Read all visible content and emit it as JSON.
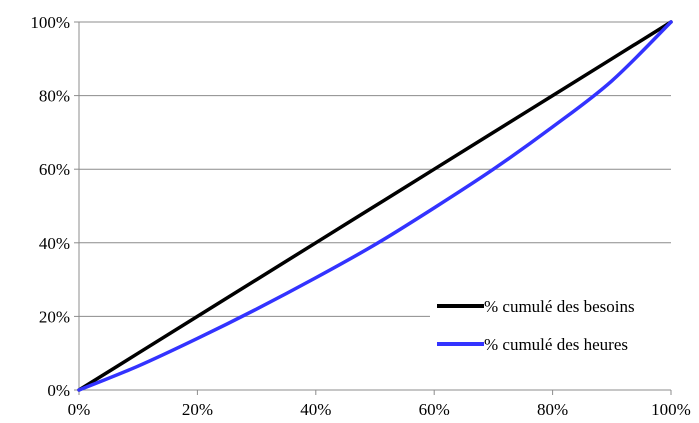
{
  "chart_data": {
    "type": "line",
    "title": "",
    "xlabel": "",
    "ylabel": "",
    "xlim": [
      0,
      100
    ],
    "ylim": [
      0,
      100
    ],
    "x_ticks": [
      "0%",
      "20%",
      "40%",
      "60%",
      "80%",
      "100%"
    ],
    "y_ticks": [
      "0%",
      "20%",
      "40%",
      "60%",
      "80%",
      "100%"
    ],
    "grid": "horizontal",
    "legend_position": "bottom-right",
    "series": [
      {
        "name": "% cumulé des besoins",
        "color": "#000000",
        "x": [
          0,
          10,
          20,
          30,
          40,
          50,
          60,
          70,
          80,
          90,
          100
        ],
        "y": [
          0,
          10,
          20,
          30,
          40,
          50,
          60,
          70,
          80,
          90,
          100
        ]
      },
      {
        "name": "% cumulé des heures",
        "color": "#3333ff",
        "x": [
          0,
          10,
          20,
          30,
          40,
          50,
          60,
          70,
          80,
          90,
          100
        ],
        "y": [
          0,
          6.5,
          14,
          22,
          30.5,
          39.5,
          49.5,
          60,
          71.5,
          84,
          100
        ]
      }
    ]
  }
}
